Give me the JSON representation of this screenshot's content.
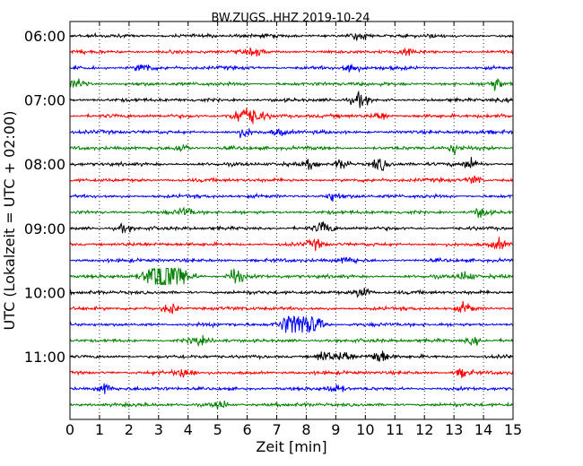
{
  "chart_data": {
    "type": "line",
    "title": "BW.ZUGS..HHZ 2019-10-24",
    "xlabel": "Zeit  [min]",
    "ylabel": "UTC (Lokalzeit = UTC + 02:00)",
    "xlim": [
      0,
      15
    ],
    "x_ticks": [
      0,
      1,
      2,
      3,
      4,
      5,
      6,
      7,
      8,
      9,
      10,
      11,
      12,
      13,
      14,
      15
    ],
    "x_tick_labels": [
      "0",
      "1",
      "2",
      "3",
      "4",
      "5",
      "6",
      "7",
      "8",
      "9",
      "10",
      "11",
      "12",
      "13",
      "14",
      "15"
    ],
    "y_tick_labels": [
      "06:00",
      "07:00",
      "08:00",
      "09:00",
      "10:00",
      "11:00"
    ],
    "row_times": [
      "06:00",
      "06:15",
      "06:30",
      "06:45",
      "07:00",
      "07:15",
      "07:30",
      "07:45",
      "08:00",
      "08:15",
      "08:30",
      "08:45",
      "09:00",
      "09:15",
      "09:30",
      "09:45",
      "10:00",
      "10:15",
      "10:30",
      "10:45",
      "11:00",
      "11:15",
      "11:30",
      "11:45"
    ],
    "colors": [
      "#000000",
      "#ff0000",
      "#0000ff",
      "#008000"
    ],
    "grid": "vertical dotted",
    "event_bursts_min": [
      [
        [
          9.8,
          0.6
        ]
      ],
      [
        [
          6.3,
          0.5
        ],
        [
          11.5,
          0.5
        ]
      ],
      [
        [
          2.5,
          0.9
        ],
        [
          9.5,
          1.0
        ]
      ],
      [
        [
          0.3,
          0.8
        ],
        [
          14.4,
          1.0
        ]
      ],
      [
        [
          9.8,
          1.0
        ]
      ],
      [
        [
          6.0,
          1.6
        ],
        [
          10.5,
          0.8
        ]
      ],
      [
        [
          5.9,
          0.7
        ],
        [
          7.1,
          0.5
        ]
      ],
      [
        [
          3.8,
          0.7
        ],
        [
          13.0,
          0.7
        ]
      ],
      [
        [
          8.2,
          0.8
        ],
        [
          9.2,
          1.0
        ],
        [
          10.5,
          0.9
        ],
        [
          13.6,
          0.9
        ]
      ],
      [
        [
          13.7,
          0.8
        ]
      ],
      [
        [
          8.9,
          0.8
        ]
      ],
      [
        [
          3.9,
          0.7
        ],
        [
          13.9,
          0.7
        ]
      ],
      [
        [
          1.8,
          0.6
        ],
        [
          8.6,
          1.0
        ]
      ],
      [
        [
          8.3,
          0.7
        ],
        [
          14.5,
          0.8
        ]
      ],
      [
        [
          9.4,
          0.6
        ]
      ],
      [
        [
          3.1,
          3.2
        ],
        [
          3.5,
          2.3
        ],
        [
          5.6,
          1.4
        ],
        [
          13.4,
          0.8
        ]
      ],
      [
        [
          9.9,
          1.0
        ]
      ],
      [
        [
          3.4,
          0.9
        ],
        [
          13.4,
          0.8
        ]
      ],
      [
        [
          7.7,
          2.6
        ],
        [
          8.3,
          1.2
        ]
      ],
      [
        [
          4.3,
          0.6
        ],
        [
          13.7,
          0.6
        ]
      ],
      [
        [
          8.6,
          1.0
        ],
        [
          9.3,
          0.9
        ],
        [
          10.5,
          1.3
        ]
      ],
      [
        [
          3.9,
          0.8
        ],
        [
          13.3,
          0.7
        ]
      ],
      [
        [
          1.2,
          1.0
        ],
        [
          9.0,
          0.7
        ]
      ],
      [
        [
          5.1,
          0.7
        ]
      ]
    ]
  }
}
